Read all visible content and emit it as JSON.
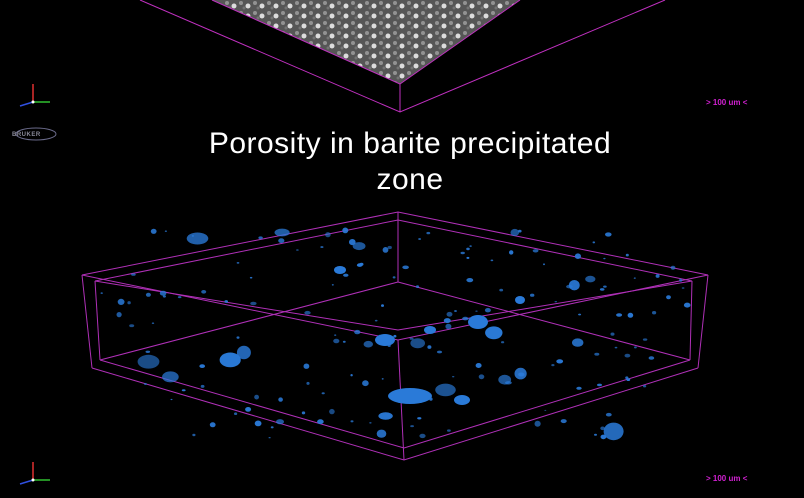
{
  "title": {
    "line1": "Porosity in barite precipitated",
    "line2": "zone"
  },
  "scale_labels": {
    "top": "> 100 um <",
    "bottom": "> 100 um <"
  },
  "logo": {
    "text": "BRUKER"
  },
  "colors": {
    "background": "#000000",
    "box_outline": "#c030c0",
    "pores": "#2a7ad8",
    "scale_text": "#d020d0",
    "title_text": "#ffffff"
  }
}
